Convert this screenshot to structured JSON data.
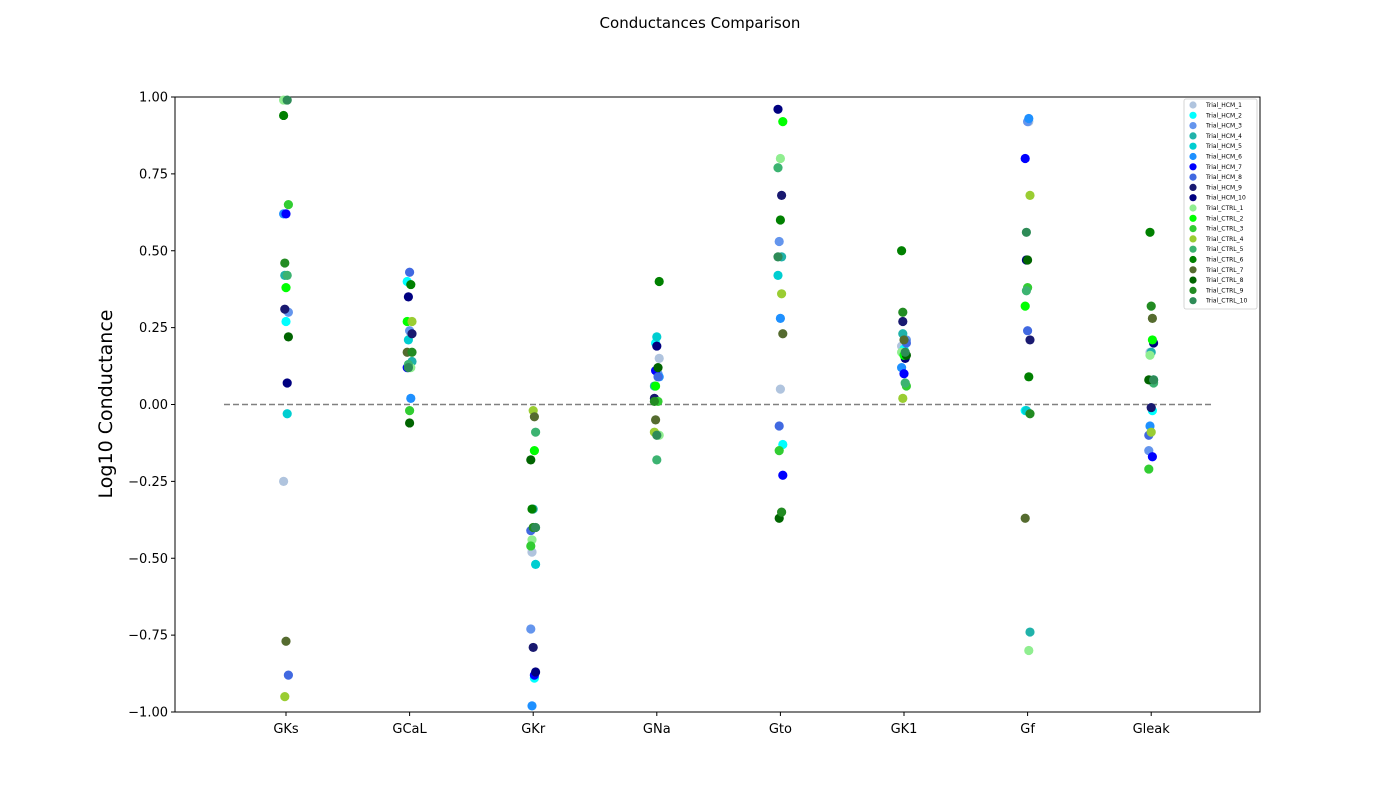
{
  "chart_data": {
    "type": "scatter",
    "title": "Conductances Comparison",
    "xlabel": "",
    "ylabel": "Log10 Conductance",
    "ylim": [
      -1.0,
      1.0
    ],
    "yticks": [
      "−1.00",
      "−0.75",
      "−0.50",
      "−0.25",
      "0.00",
      "0.25",
      "0.50",
      "0.75",
      "1.00"
    ],
    "categories": [
      "GKs",
      "GCaL",
      "GKr",
      "GNa",
      "Gto",
      "GK1",
      "Gf",
      "Gleak"
    ],
    "reference_line": 0.0,
    "grid": false,
    "legend_position": "top-right",
    "series": [
      {
        "name": "Trial_HCM_1",
        "color": "#b0c4de",
        "values": [
          -0.25,
          0.23,
          -0.48,
          0.15,
          0.05,
          0.19,
          0.92,
          0.17
        ]
      },
      {
        "name": "Trial_HCM_2",
        "color": "#00ffff",
        "values": [
          0.27,
          0.4,
          -0.89,
          0.2,
          -0.13,
          0.18,
          -0.02,
          -0.02
        ]
      },
      {
        "name": "Trial_HCM_3",
        "color": "#6495ed",
        "values": [
          0.3,
          0.24,
          -0.73,
          0.1,
          0.53,
          0.21,
          0.92,
          -0.15
        ]
      },
      {
        "name": "Trial_HCM_4",
        "color": "#20b2aa",
        "values": [
          0.42,
          0.14,
          -0.34,
          0.06,
          0.48,
          0.23,
          -0.74,
          0.17
        ]
      },
      {
        "name": "Trial_HCM_5",
        "color": "#00ced1",
        "values": [
          -0.03,
          0.21,
          -0.52,
          0.22,
          0.42,
          0.16,
          -0.02,
          0.08
        ]
      },
      {
        "name": "Trial_HCM_6",
        "color": "#1e90ff",
        "values": [
          0.62,
          0.02,
          -0.98,
          0.09,
          0.28,
          0.12,
          0.93,
          -0.07
        ]
      },
      {
        "name": "Trial_HCM_7",
        "color": "#0000ff",
        "values": [
          0.62,
          0.12,
          -0.88,
          0.11,
          -0.23,
          0.1,
          0.8,
          -0.17
        ]
      },
      {
        "name": "Trial_HCM_8",
        "color": "#4169e1",
        "values": [
          -0.88,
          0.43,
          -0.41,
          0.09,
          -0.07,
          0.2,
          0.24,
          -0.1
        ]
      },
      {
        "name": "Trial_HCM_9",
        "color": "#191970",
        "values": [
          0.31,
          0.23,
          -0.79,
          0.02,
          0.68,
          0.27,
          0.21,
          -0.01
        ]
      },
      {
        "name": "Trial_HCM_10",
        "color": "#000080",
        "values": [
          0.07,
          0.35,
          -0.87,
          0.19,
          0.96,
          0.15,
          0.47,
          0.2
        ]
      },
      {
        "name": "Trial_CTRL_1",
        "color": "#90ee90",
        "values": [
          0.99,
          0.12,
          -0.44,
          -0.1,
          0.8,
          0.17,
          -0.8,
          0.16
        ]
      },
      {
        "name": "Trial_CTRL_2",
        "color": "#00ff00",
        "values": [
          0.38,
          0.27,
          -0.15,
          0.06,
          0.92,
          0.16,
          0.32,
          0.21
        ]
      },
      {
        "name": "Trial_CTRL_3",
        "color": "#32cd32",
        "values": [
          0.65,
          -0.02,
          -0.46,
          0.01,
          -0.15,
          0.06,
          0.38,
          -0.21
        ]
      },
      {
        "name": "Trial_CTRL_4",
        "color": "#9acd32",
        "values": [
          -0.95,
          0.27,
          -0.02,
          -0.09,
          0.36,
          0.02,
          0.68,
          -0.09
        ]
      },
      {
        "name": "Trial_CTRL_5",
        "color": "#3cb371",
        "values": [
          0.42,
          0.13,
          -0.09,
          -0.18,
          0.77,
          0.07,
          0.37,
          0.07
        ]
      },
      {
        "name": "Trial_CTRL_6",
        "color": "#008000",
        "values": [
          0.94,
          0.39,
          -0.34,
          0.4,
          0.6,
          0.5,
          0.09,
          0.56
        ]
      },
      {
        "name": "Trial_CTRL_7",
        "color": "#556b2f",
        "values": [
          -0.77,
          0.17,
          -0.04,
          -0.05,
          0.23,
          0.21,
          -0.37,
          0.28
        ]
      },
      {
        "name": "Trial_CTRL_8",
        "color": "#006400",
        "values": [
          0.22,
          -0.06,
          -0.18,
          0.12,
          -0.37,
          0.16,
          0.47,
          0.08
        ]
      },
      {
        "name": "Trial_CTRL_9",
        "color": "#228b22",
        "values": [
          0.46,
          0.17,
          -0.4,
          0.01,
          -0.35,
          0.3,
          -0.03,
          0.32
        ]
      },
      {
        "name": "Trial_CTRL_10",
        "color": "#2e8b57",
        "values": [
          0.99,
          0.12,
          -0.4,
          -0.1,
          0.48,
          0.17,
          0.56,
          0.08
        ]
      }
    ]
  }
}
